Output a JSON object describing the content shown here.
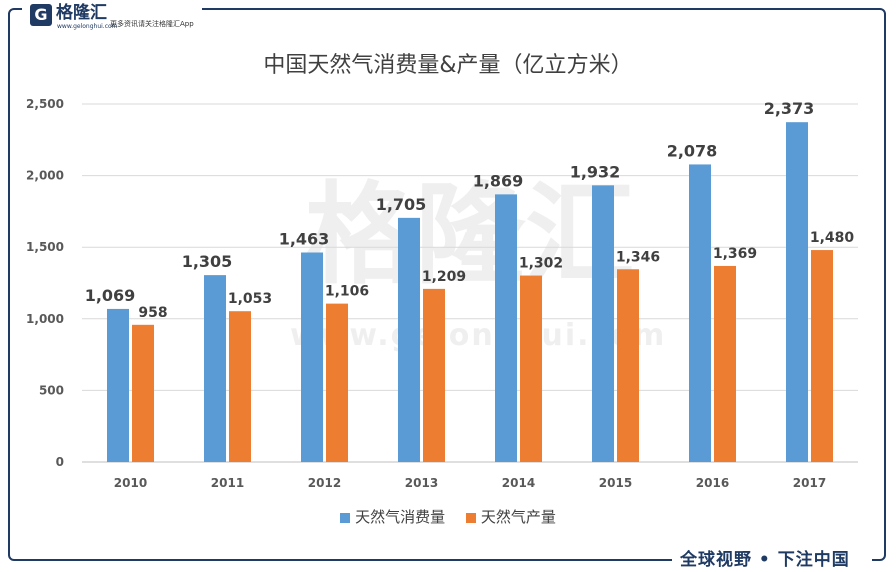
{
  "header": {
    "logo_mark": "G",
    "logo_name": "格隆汇",
    "logo_url": "www.gelonghui.com",
    "slogan": "更多资讯请关注格隆汇App"
  },
  "watermark": {
    "text": "格隆汇",
    "url": "www.gelonghui.com"
  },
  "footer": {
    "slogan": "全球视野 • 下注中国"
  },
  "colors": {
    "consumption": "#5b9bd5",
    "production": "#ed7d31",
    "frame": "#1f3a63",
    "grid": "#d9d9d9"
  },
  "chart_data": {
    "type": "bar",
    "title": "中国天然气消费量&产量（亿立方米）",
    "categories": [
      "2010",
      "2011",
      "2012",
      "2013",
      "2014",
      "2015",
      "2016",
      "2017"
    ],
    "series": [
      {
        "name": "天然气消费量",
        "values": [
          1069,
          1305,
          1463,
          1705,
          1869,
          1932,
          2078,
          2373
        ]
      },
      {
        "name": "天然气产量",
        "values": [
          958,
          1053,
          1106,
          1209,
          1302,
          1346,
          1369,
          1480
        ]
      }
    ],
    "ylim": [
      0,
      2500
    ],
    "yticks": [
      0,
      500,
      1000,
      1500,
      2000,
      2500
    ],
    "ytick_labels": [
      "0",
      "500",
      "1,000",
      "1,500",
      "2,000",
      "2,500"
    ],
    "data_labels": [
      [
        "1,069",
        "1,305",
        "1,463",
        "1,705",
        "1,869",
        "1,932",
        "2,078",
        "2,373"
      ],
      [
        "958",
        "1,053",
        "1,106",
        "1,209",
        "1,302",
        "1,346",
        "1,369",
        "1,480"
      ]
    ],
    "grid": true,
    "legend_position": "bottom"
  }
}
